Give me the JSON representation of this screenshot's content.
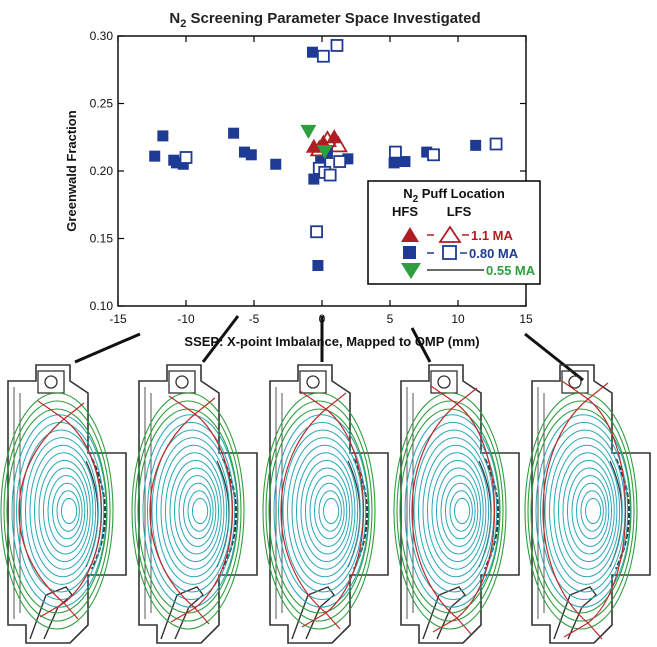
{
  "chart_data": {
    "type": "scatter",
    "title_main": "N",
    "title_sub": "2",
    "title_rest": " Screening Parameter Space Investigated",
    "xlabel": "SSEP: X-point Imbalance, Mapped to OMP (mm)",
    "ylabel": "Greenwald Fraction",
    "xlim": [
      -15,
      15
    ],
    "ylim": [
      0.1,
      0.3
    ],
    "xticks": [
      -15,
      -10,
      -5,
      0,
      5,
      10,
      15
    ],
    "yticks": [
      0.1,
      0.15,
      0.2,
      0.25,
      0.3
    ],
    "ytick_labels": [
      "0.10",
      "0.15",
      "0.20",
      "0.25",
      "0.30"
    ],
    "colors": {
      "red": "#b01e23",
      "blue": "#1f3a93",
      "green": "#2e9e3e"
    },
    "series": [
      {
        "name": "1.1 MA HFS",
        "marker": "triangle-up-filled",
        "color": "#b01e23",
        "points": [
          [
            -0.6,
            0.218
          ],
          [
            0.9,
            0.225
          ],
          [
            0.1,
            0.221
          ]
        ]
      },
      {
        "name": "1.1 MA LFS",
        "marker": "triangle-up-open",
        "color": "#b01e23",
        "points": [
          [
            0.4,
            0.223
          ],
          [
            1.2,
            0.219
          ],
          [
            -0.2,
            0.216
          ]
        ]
      },
      {
        "name": "0.80 MA HFS",
        "marker": "square-filled",
        "color": "#1f3a93",
        "points": [
          [
            -12.3,
            0.211
          ],
          [
            -11.7,
            0.226
          ],
          [
            -10.9,
            0.208
          ],
          [
            -10.7,
            0.206
          ],
          [
            -10.2,
            0.205
          ],
          [
            -6.5,
            0.228
          ],
          [
            -5.7,
            0.214
          ],
          [
            -5.2,
            0.212
          ],
          [
            -3.4,
            0.205
          ],
          [
            -0.7,
            0.288
          ],
          [
            -0.6,
            0.194
          ],
          [
            -0.3,
            0.13
          ],
          [
            -0.1,
            0.207
          ],
          [
            0.4,
            0.213
          ],
          [
            1.9,
            0.209
          ],
          [
            5.3,
            0.206
          ],
          [
            6.1,
            0.207
          ],
          [
            7.7,
            0.214
          ],
          [
            11.3,
            0.219
          ]
        ]
      },
      {
        "name": "0.80 MA LFS",
        "marker": "square-open",
        "color": "#1f3a93",
        "points": [
          [
            -10.0,
            0.21
          ],
          [
            -0.4,
            0.155
          ],
          [
            0.1,
            0.285
          ],
          [
            1.1,
            0.293
          ],
          [
            -0.2,
            0.202
          ],
          [
            0.2,
            0.199
          ],
          [
            0.6,
            0.197
          ],
          [
            1.3,
            0.207
          ],
          [
            5.4,
            0.214
          ],
          [
            8.2,
            0.212
          ],
          [
            12.8,
            0.22
          ]
        ]
      },
      {
        "name": "0.55 MA HFS",
        "marker": "triangle-down-filled",
        "color": "#2e9e3e",
        "points": [
          [
            -1.0,
            0.229
          ],
          [
            0.2,
            0.214
          ]
        ]
      }
    ],
    "legend": {
      "title_main": "N",
      "title_sub": "2",
      "title_rest": " Puff Location",
      "col1": "HFS",
      "col2": "LFS",
      "rows": [
        {
          "label": "1.1 MA",
          "color": "#b01e23"
        },
        {
          "label": "0.80 MA",
          "color": "#1f3a93"
        },
        {
          "label": "0.55 MA",
          "color": "#2e9e3e"
        }
      ],
      "placement": "right"
    },
    "insets": {
      "count": 5,
      "ssep_mm": [
        -12,
        -6,
        0,
        6,
        12
      ]
    }
  }
}
